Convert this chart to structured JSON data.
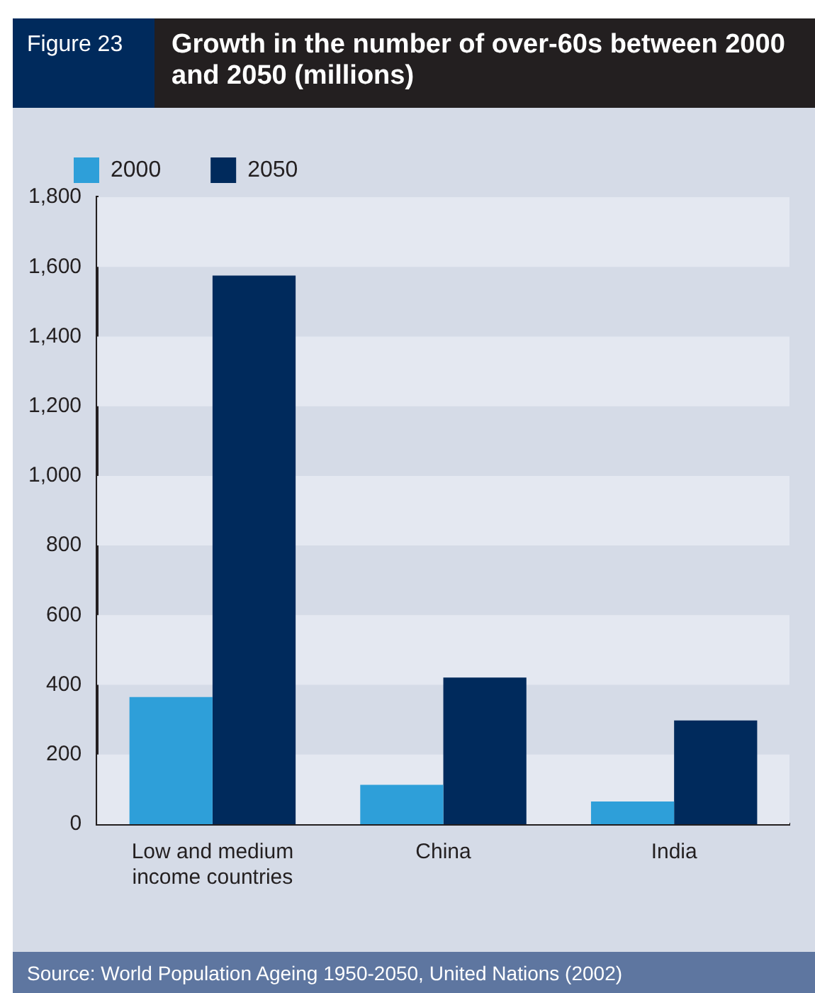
{
  "chart_data": {
    "type": "bar",
    "title": "Growth in the number of over-60s between 2000 and 2050 (millions)",
    "categories": [
      "Low and medium income countries",
      "China",
      "India"
    ],
    "series": [
      {
        "name": "2000",
        "color": "#2e9fd9",
        "values": [
          365,
          113,
          65
        ]
      },
      {
        "name": "2050",
        "color": "#002a5c",
        "values": [
          1575,
          421,
          298
        ]
      }
    ],
    "ylim": [
      0,
      1800
    ],
    "yticks": [
      0,
      {
        "value": 200,
        "label": "200"
      },
      {
        "value": 400,
        "label": "400"
      },
      {
        "value": 600,
        "label": "600"
      },
      {
        "value": 800,
        "label": "800"
      },
      {
        "value": 1000,
        "label": "1,000"
      },
      {
        "value": 1200,
        "label": "1,200"
      },
      {
        "value": 1400,
        "label": "1,400"
      },
      {
        "value": 1600,
        "label": "1,600"
      },
      {
        "value": 1800,
        "label": "1,800"
      }
    ],
    "bands": [
      {
        "axis": "y",
        "from": 0,
        "to": 200,
        "color": "#e4e8f1"
      },
      {
        "axis": "y",
        "from": 400,
        "to": 600,
        "color": "#e4e8f1"
      },
      {
        "axis": "y",
        "from": 800,
        "to": 1000,
        "color": "#e4e8f1"
      },
      {
        "axis": "y",
        "from": 1200,
        "to": 1400,
        "color": "#e4e8f1"
      },
      {
        "axis": "y",
        "from": 1600,
        "to": 1800,
        "color": "#e4e8f1"
      }
    ],
    "legend": "top left",
    "annotations": [
      "Figure 23",
      "Source: World Population Ageing 1950-2050, United Nations (2002)"
    ]
  }
}
